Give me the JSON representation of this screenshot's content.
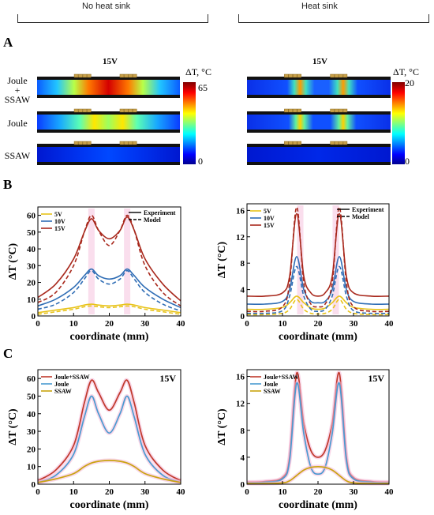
{
  "headers": {
    "left": "No heat sink",
    "right": "Heat sink"
  },
  "panels": {
    "a": "A",
    "b": "B",
    "c": "C"
  },
  "heatmaps": {
    "voltage_label": "15V",
    "row_labels": {
      "joule_ssaw": [
        "Joule",
        "+",
        "SSAW"
      ],
      "joule": "Joule",
      "ssaw": "SSAW"
    },
    "colorbar_title": "ΔT, °C",
    "left": {
      "max": "65",
      "min": "0"
    },
    "right": {
      "max": "20",
      "min": "0"
    }
  },
  "colors": {
    "v5": "#e8c31a",
    "v10": "#2f6db5",
    "v15": "#a8281c",
    "combined": "#c0392b",
    "joule": "#4a9bd1",
    "ssaw": "#c9a40f",
    "glow": "#f4b6d6"
  },
  "chart_data": [
    {
      "type": "line",
      "panel": "B-left",
      "xlabel": "coordinate (mm)",
      "ylabel": "ΔT (°C)",
      "xlim": [
        0,
        40
      ],
      "ylim": [
        0,
        65
      ],
      "xticks": [
        0,
        10,
        20,
        30,
        40
      ],
      "yticks": [
        0,
        10,
        20,
        30,
        40,
        50,
        60
      ],
      "legend": [
        "5V",
        "10V",
        "15V"
      ],
      "legend2": [
        "Experiment",
        "Model"
      ],
      "x": [
        0,
        5,
        10,
        13,
        15,
        17,
        20,
        23,
        25,
        27,
        30,
        35,
        40
      ],
      "series": [
        {
          "name": "5V",
          "style": "Experiment",
          "values": [
            2,
            3.5,
            5,
            6.5,
            7,
            6.5,
            6,
            6.5,
            7,
            6.5,
            5,
            3.5,
            2
          ]
        },
        {
          "name": "5V",
          "style": "Model",
          "values": [
            1,
            2.5,
            4,
            5.5,
            6,
            5.5,
            5,
            5.5,
            6,
            5.5,
            4,
            2.5,
            1
          ]
        },
        {
          "name": "10V",
          "style": "Experiment",
          "values": [
            6,
            10,
            17,
            24,
            28,
            24,
            22,
            24,
            28,
            24,
            17,
            10,
            5
          ]
        },
        {
          "name": "10V",
          "style": "Model",
          "values": [
            4,
            7,
            14,
            22,
            27,
            22,
            19,
            22,
            27,
            22,
            14,
            7,
            3
          ]
        },
        {
          "name": "15V",
          "style": "Experiment",
          "values": [
            11,
            19,
            34,
            50,
            58,
            51,
            46,
            51,
            59,
            51,
            34,
            19,
            9
          ]
        },
        {
          "name": "15V",
          "style": "Model",
          "values": [
            8,
            14,
            30,
            50,
            60,
            51,
            42,
            51,
            60,
            51,
            30,
            14,
            6
          ]
        }
      ]
    },
    {
      "type": "line",
      "panel": "B-right",
      "xlabel": "coordinate (mm)",
      "ylabel": "ΔT (°C)",
      "xlim": [
        0,
        40
      ],
      "ylim": [
        0,
        17
      ],
      "xticks": [
        0,
        10,
        20,
        30,
        40
      ],
      "yticks": [
        0,
        4,
        8,
        12,
        16
      ],
      "legend": [
        "5V",
        "10V",
        "15V"
      ],
      "legend2": [
        "Experiment",
        "Model"
      ],
      "x": [
        0,
        5,
        10,
        12,
        14,
        16,
        18,
        20,
        22,
        24,
        26,
        28,
        30,
        35,
        40
      ],
      "series": [
        {
          "name": "5V",
          "style": "Experiment",
          "values": [
            1,
            1,
            1.3,
            2,
            3,
            2,
            1.2,
            1,
            1.2,
            2,
            3,
            2,
            1.3,
            1,
            1
          ]
        },
        {
          "name": "5V",
          "style": "Model",
          "values": [
            0.2,
            0.2,
            0.4,
            1,
            2.5,
            1,
            0.4,
            0.3,
            0.4,
            1,
            2.5,
            1,
            0.4,
            0.2,
            0.2
          ]
        },
        {
          "name": "10V",
          "style": "Experiment",
          "values": [
            1.8,
            1.8,
            2.2,
            4,
            9,
            4,
            2.2,
            2,
            2.2,
            4,
            9,
            4,
            2.2,
            1.8,
            1.8
          ]
        },
        {
          "name": "10V",
          "style": "Model",
          "values": [
            0.4,
            0.4,
            0.8,
            3,
            7.5,
            3,
            1,
            0.7,
            1,
            3,
            7.5,
            3,
            0.8,
            0.4,
            0.4
          ]
        },
        {
          "name": "15V",
          "style": "Experiment",
          "values": [
            3,
            3,
            3.5,
            6,
            15.5,
            6,
            3.5,
            3,
            3.5,
            6,
            15.5,
            6,
            3.5,
            3,
            3
          ]
        },
        {
          "name": "15V",
          "style": "Model",
          "values": [
            0.7,
            0.7,
            1.4,
            5,
            16.5,
            5,
            1.8,
            1.4,
            1.8,
            5,
            16.5,
            5,
            1.4,
            0.7,
            0.7
          ]
        }
      ]
    },
    {
      "type": "line",
      "panel": "C-left",
      "xlabel": "coordinate (mm)",
      "ylabel": "ΔT (°C)",
      "annotation": "15V",
      "xlim": [
        0,
        40
      ],
      "ylim": [
        0,
        65
      ],
      "xticks": [
        0,
        10,
        20,
        30,
        40
      ],
      "yticks": [
        0,
        10,
        20,
        30,
        40,
        50,
        60
      ],
      "legend": [
        "Joule+SSAW",
        "Joule",
        "SSAW"
      ],
      "x": [
        0,
        5,
        10,
        13,
        15,
        17,
        20,
        23,
        25,
        27,
        30,
        35,
        40
      ],
      "series": [
        {
          "name": "Joule+SSAW",
          "values": [
            2,
            8,
            22,
            46,
            59,
            52,
            42,
            52,
            59,
            46,
            22,
            8,
            2
          ]
        },
        {
          "name": "Joule",
          "values": [
            1,
            5,
            17,
            38,
            50,
            40,
            29,
            40,
            50,
            38,
            17,
            5,
            1
          ]
        },
        {
          "name": "SSAW",
          "values": [
            1,
            3,
            6,
            10,
            12,
            13,
            13.5,
            13,
            12,
            10,
            6,
            3,
            1
          ]
        }
      ]
    },
    {
      "type": "line",
      "panel": "C-right",
      "xlabel": "coordinate (mm)",
      "ylabel": "ΔT (°C)",
      "annotation": "15V",
      "xlim": [
        0,
        40
      ],
      "ylim": [
        0,
        17
      ],
      "xticks": [
        0,
        10,
        20,
        30,
        40
      ],
      "yticks": [
        0,
        4,
        8,
        12,
        16
      ],
      "legend": [
        "Joule+SSAW",
        "Joule",
        "SSAW"
      ],
      "x": [
        0,
        5,
        10,
        12,
        14,
        16,
        18,
        20,
        22,
        24,
        26,
        28,
        30,
        35,
        40
      ],
      "series": [
        {
          "name": "Joule+SSAW",
          "values": [
            0.3,
            0.4,
            1,
            4,
            16.5,
            9,
            5,
            4,
            5,
            9,
            16.5,
            4,
            1,
            0.4,
            0.3
          ]
        },
        {
          "name": "Joule",
          "values": [
            0.2,
            0.3,
            0.8,
            3.5,
            15,
            7.5,
            2.5,
            1.5,
            2.5,
            7.5,
            15,
            3.5,
            0.8,
            0.3,
            0.2
          ]
        },
        {
          "name": "SSAW",
          "values": [
            0.1,
            0.1,
            0.2,
            0.5,
            1.3,
            2.1,
            2.5,
            2.6,
            2.5,
            2.1,
            1.3,
            0.5,
            0.2,
            0.1,
            0.1
          ]
        }
      ]
    }
  ]
}
